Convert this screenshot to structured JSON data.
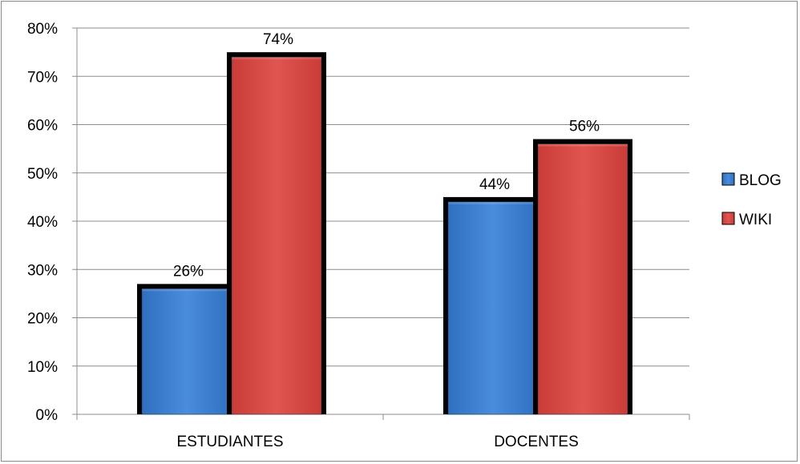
{
  "chart_data": {
    "type": "bar",
    "categories": [
      "ESTUDIANTES",
      "DOCENTES"
    ],
    "series": [
      {
        "name": "BLOG",
        "values": [
          26,
          44
        ],
        "labels": [
          "26%",
          "44%"
        ],
        "color": "#3d7fcf"
      },
      {
        "name": "WIKI",
        "values": [
          74,
          56
        ],
        "labels": [
          "74%",
          "56%"
        ],
        "color": "#d94a45"
      }
    ],
    "ylim": [
      0,
      80
    ],
    "yticks": [
      "0%",
      "10%",
      "20%",
      "30%",
      "40%",
      "50%",
      "60%",
      "70%",
      "80%"
    ],
    "grid": true,
    "legend_position": "right",
    "title": "",
    "xlabel": "",
    "ylabel": ""
  }
}
